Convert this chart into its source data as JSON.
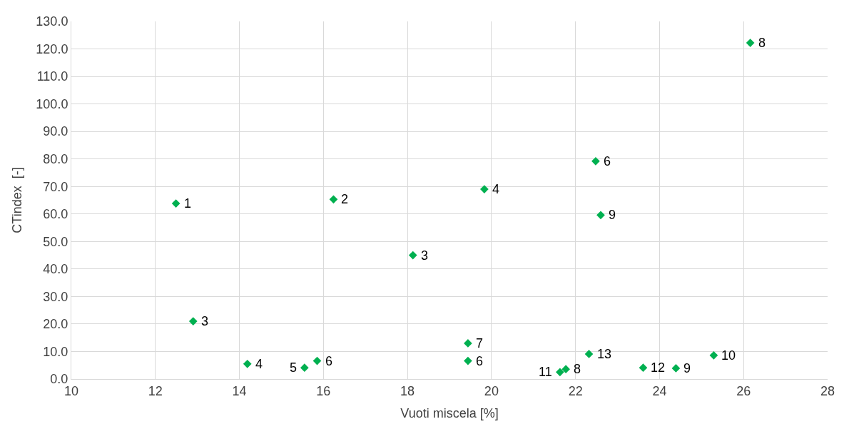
{
  "chart_data": {
    "type": "scatter",
    "xlabel": "Vuoti miscela [%]",
    "ylabel": "CTindex  [-]",
    "x": [
      12.49,
      12.9,
      14.19,
      15.55,
      15.85,
      16.24,
      18.13,
      19.44,
      19.44,
      19.83,
      21.63,
      21.77,
      22.32,
      22.48,
      22.6,
      23.61,
      24.39,
      25.29,
      26.16
    ],
    "series": [
      {
        "color": "#00b050",
        "values": [
          63.8,
          21.0,
          5.5,
          4.1,
          6.6,
          65.3,
          45.0,
          13.0,
          6.6,
          69.0,
          2.5,
          3.6,
          9.1,
          79.2,
          59.6,
          4.1,
          3.9,
          8.6,
          122.2
        ]
      }
    ],
    "annotations": [
      {
        "text": "1",
        "x": 12.49,
        "y": 63.8
      },
      {
        "text": "3",
        "x": 12.9,
        "y": 21.0
      },
      {
        "text": "4",
        "x": 14.19,
        "y": 5.5
      },
      {
        "text": "5",
        "x": 15.55,
        "y": 4.1
      },
      {
        "text": "6",
        "x": 15.85,
        "y": 6.6
      },
      {
        "text": "2",
        "x": 16.24,
        "y": 65.3
      },
      {
        "text": "3",
        "x": 18.13,
        "y": 45.0
      },
      {
        "text": "7",
        "x": 19.44,
        "y": 13.0
      },
      {
        "text": "6",
        "x": 19.44,
        "y": 6.6
      },
      {
        "text": "4",
        "x": 19.83,
        "y": 69.0
      },
      {
        "text": "11",
        "x": 21.63,
        "y": 2.5
      },
      {
        "text": "8",
        "x": 21.77,
        "y": 3.6
      },
      {
        "text": "13",
        "x": 22.32,
        "y": 9.1
      },
      {
        "text": "6",
        "x": 22.48,
        "y": 79.2
      },
      {
        "text": "9",
        "x": 22.6,
        "y": 59.6
      },
      {
        "text": "12",
        "x": 23.61,
        "y": 4.1
      },
      {
        "text": "9",
        "x": 24.39,
        "y": 3.9
      },
      {
        "text": "10",
        "x": 25.29,
        "y": 8.6
      },
      {
        "text": "8",
        "x": 26.16,
        "y": 122.2
      }
    ],
    "xlim": [
      10,
      28
    ],
    "xticks": [
      10,
      12,
      14,
      16,
      18,
      20,
      22,
      24,
      26,
      28
    ],
    "ylim": [
      0,
      130
    ],
    "yticks": [
      {
        "value": 0,
        "label": "0.0"
      },
      {
        "value": 10,
        "label": "10.0"
      },
      {
        "value": 20,
        "label": "20.0"
      },
      {
        "value": 30,
        "label": "30.0"
      },
      {
        "value": 40,
        "label": "40.0"
      },
      {
        "value": 50,
        "label": "50.0"
      },
      {
        "value": 60,
        "label": "60.0"
      },
      {
        "value": 70,
        "label": "70.0"
      },
      {
        "value": 80,
        "label": "80.0"
      },
      {
        "value": 90,
        "label": "90.0"
      },
      {
        "value": 100,
        "label": "100.0"
      },
      {
        "value": 110,
        "label": "110.0"
      },
      {
        "value": 120,
        "label": "120.0"
      },
      {
        "value": 130,
        "label": "130.0"
      }
    ],
    "grid": true,
    "marker": "diamond"
  }
}
